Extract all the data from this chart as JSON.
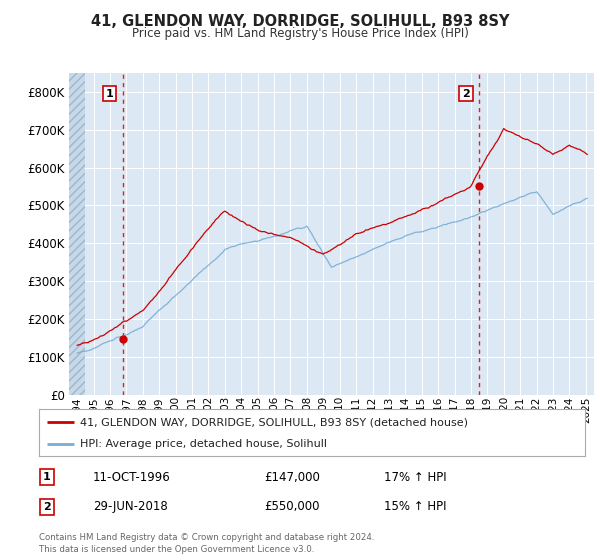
{
  "title": "41, GLENDON WAY, DORRIDGE, SOLIHULL, B93 8SY",
  "subtitle": "Price paid vs. HM Land Registry's House Price Index (HPI)",
  "ylim": [
    0,
    850000
  ],
  "yticks": [
    0,
    100000,
    200000,
    300000,
    400000,
    500000,
    600000,
    700000,
    800000
  ],
  "ytick_labels": [
    "£0",
    "£100K",
    "£200K",
    "£300K",
    "£400K",
    "£500K",
    "£600K",
    "£700K",
    "£800K"
  ],
  "plot_bg_color": "#dce8f3",
  "grid_color": "#ffffff",
  "sale1": {
    "date_num": 1996.78,
    "price": 147000,
    "label": "1",
    "date_str": "11-OCT-1996",
    "pct": "17%"
  },
  "sale2": {
    "date_num": 2018.49,
    "price": 550000,
    "label": "2",
    "date_str": "29-JUN-2018",
    "pct": "15%"
  },
  "legend_line1": "41, GLENDON WAY, DORRIDGE, SOLIHULL, B93 8SY (detached house)",
  "legend_line2": "HPI: Average price, detached house, Solihull",
  "footer": "Contains HM Land Registry data © Crown copyright and database right 2024.\nThis data is licensed under the Open Government Licence v3.0.",
  "line_color": "#cc0000",
  "hpi_color": "#7aadd4",
  "xlim_start": 1993.5,
  "xlim_end": 2025.5,
  "hatch_end": 1994.5
}
